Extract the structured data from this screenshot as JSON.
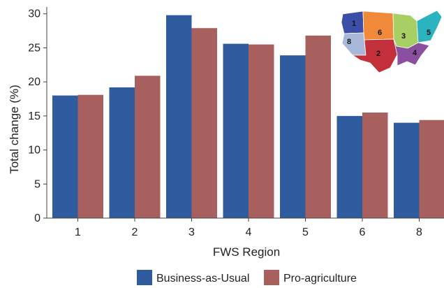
{
  "chart_data": {
    "type": "bar",
    "xlabel": "FWS Region",
    "ylabel": "Total change (%)",
    "categories": [
      "1",
      "2",
      "3",
      "4",
      "5",
      "6",
      "8"
    ],
    "ylim": [
      0,
      31
    ],
    "yticks": [
      0,
      5,
      10,
      15,
      20,
      25,
      30
    ],
    "grid": false,
    "legend_placement": "bottom",
    "series": [
      {
        "name": "Business-as-Usual",
        "color": "#2e5c9e",
        "values": [
          18.0,
          19.2,
          29.8,
          25.6,
          23.9,
          15.0,
          14.0
        ]
      },
      {
        "name": "Pro-agriculture",
        "color": "#a8605f",
        "values": [
          18.1,
          20.9,
          27.9,
          25.5,
          26.8,
          15.5,
          14.4
        ]
      }
    ]
  },
  "inset_map": {
    "region_labels": [
      "1",
      "6",
      "3",
      "5",
      "8",
      "2",
      "4"
    ],
    "region_colors": {
      "1": "#3b4fa6",
      "8": "#a9b7d9",
      "6": "#f08a3a",
      "3": "#a8cf63",
      "5": "#2bb3c0",
      "2": "#c4303a",
      "4": "#8a4f9e"
    }
  }
}
